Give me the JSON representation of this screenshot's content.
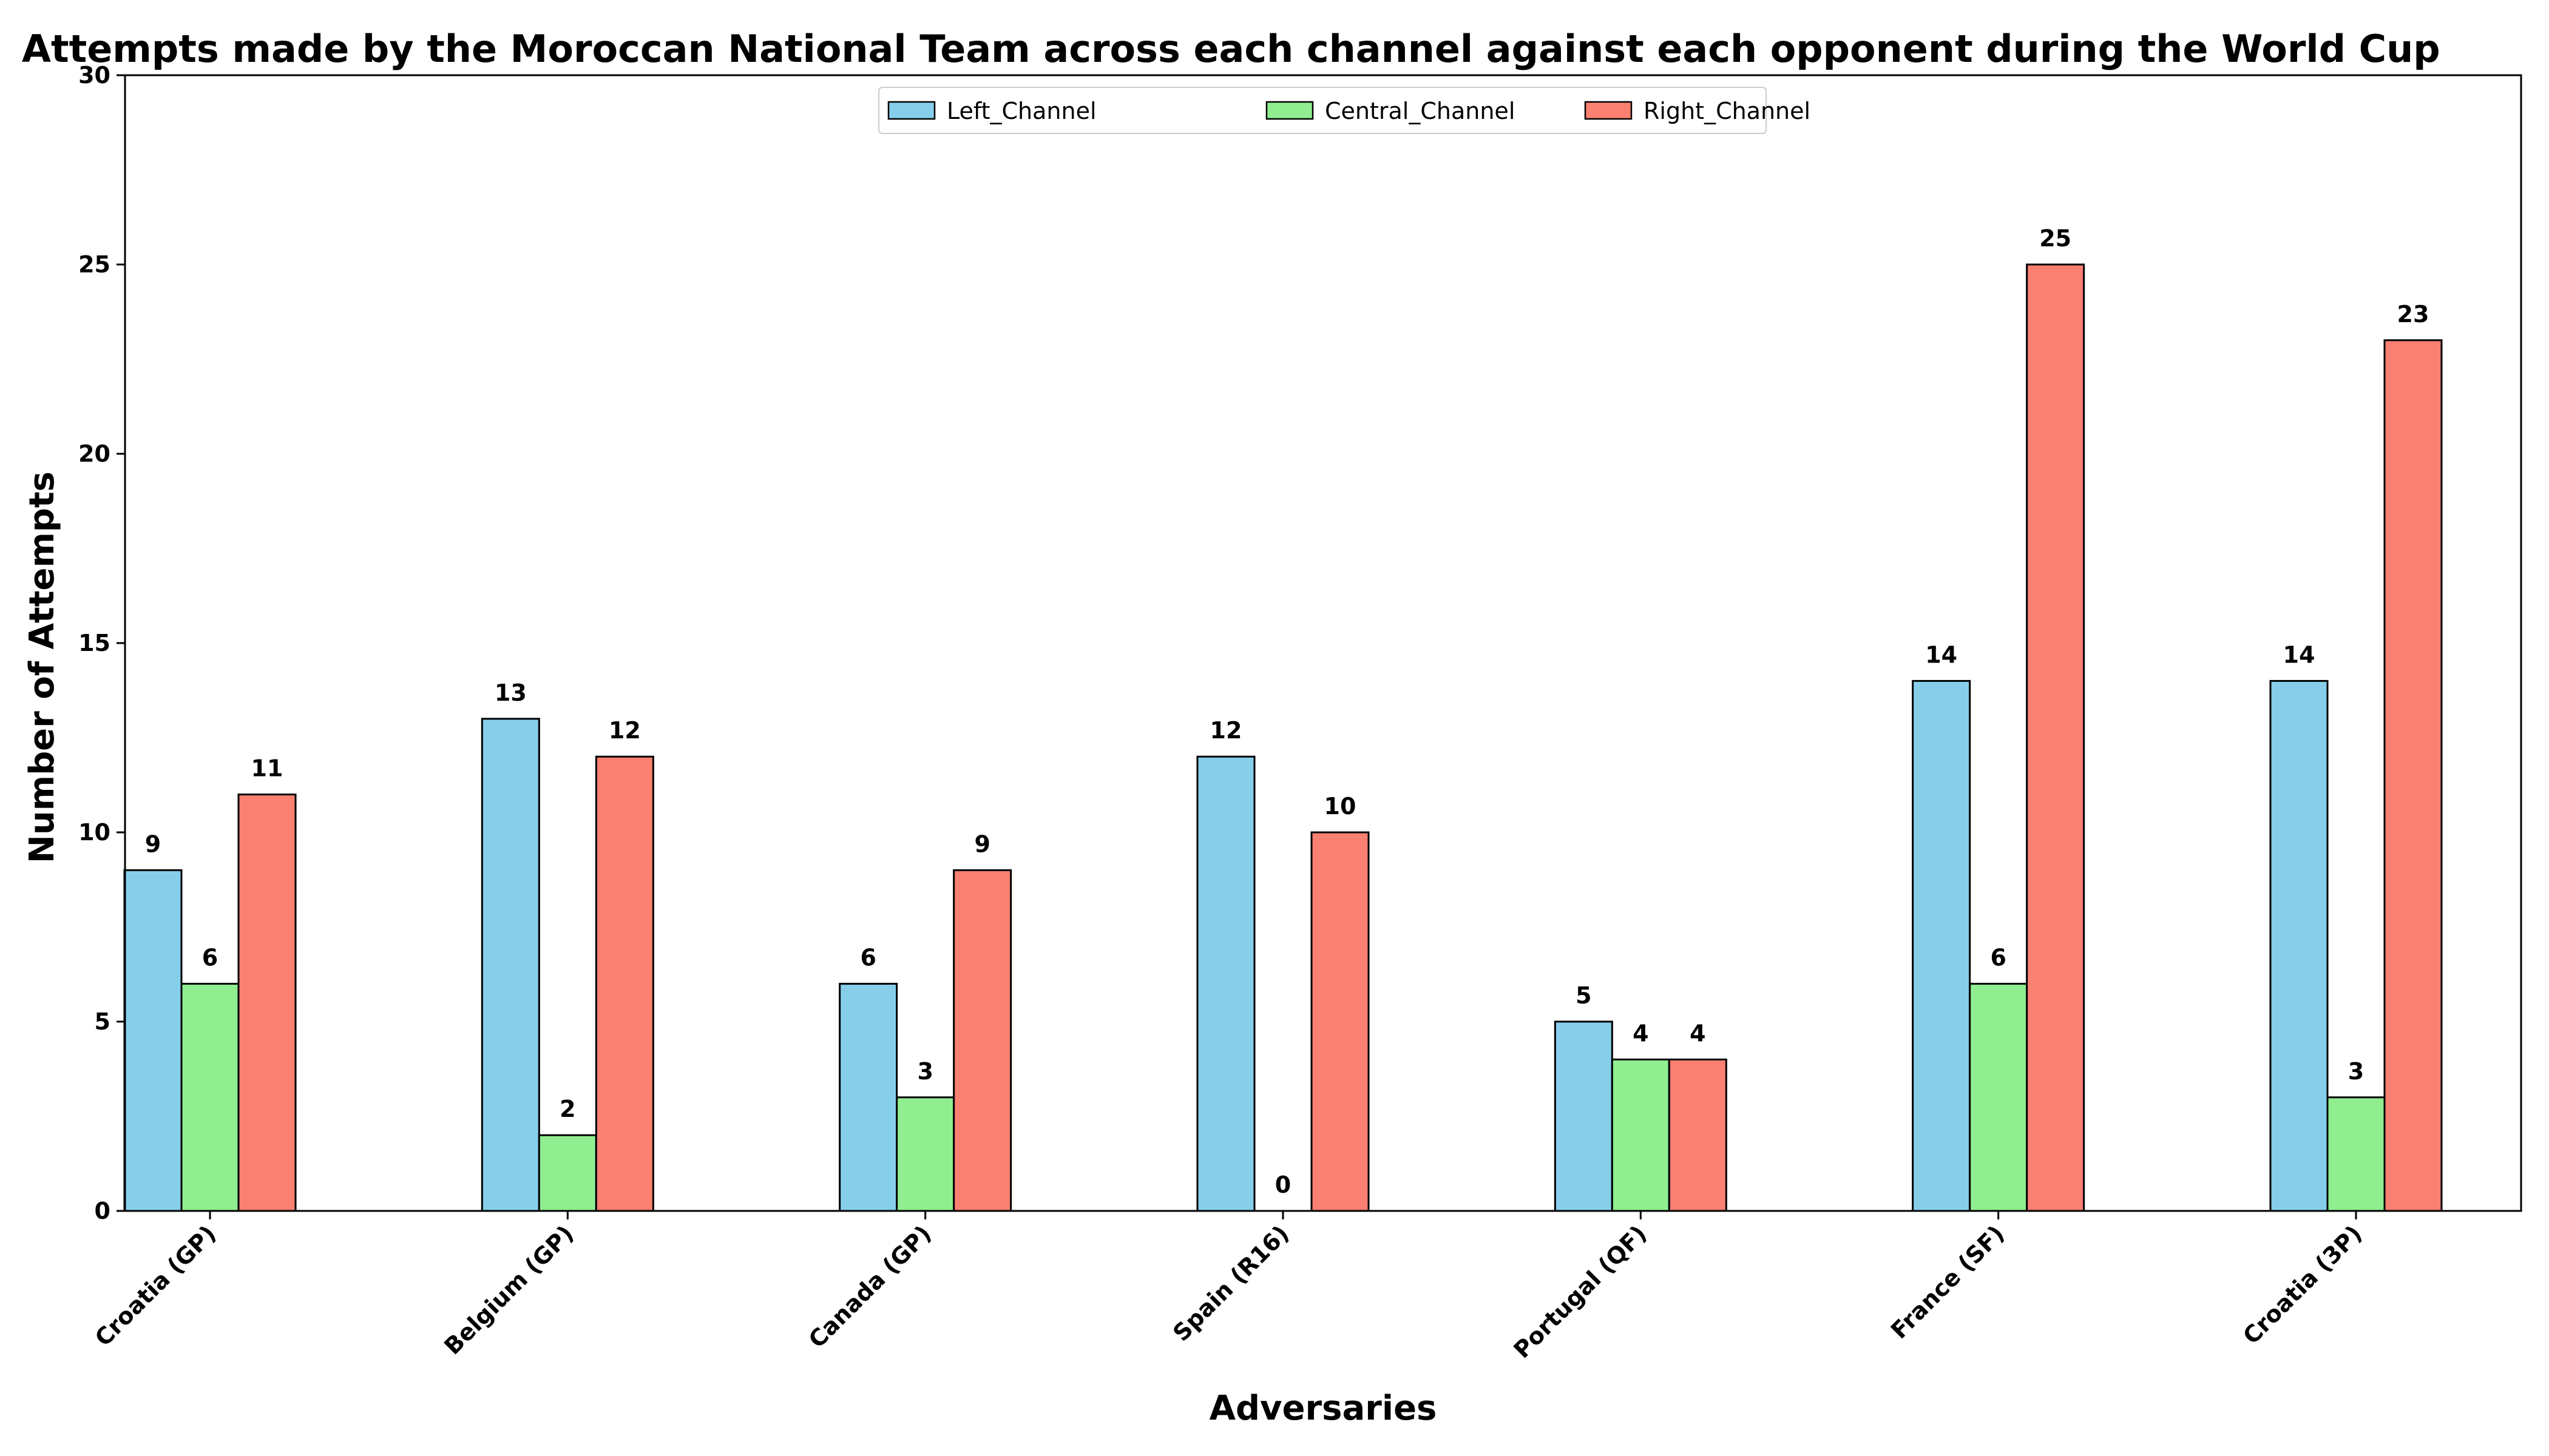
{
  "chart_data": {
    "type": "bar",
    "title": "Attempts made by the Moroccan National Team across each channel against each opponent during the World Cup",
    "xlabel": "Adversaries",
    "ylabel": "Number of Attempts",
    "ylim": [
      0,
      30
    ],
    "yticks": [
      0,
      5,
      10,
      15,
      20,
      25,
      30
    ],
    "categories": [
      "Croatia (GP)",
      "Belgium (GP)",
      "Canada (GP)",
      "Spain (R16)",
      "Portugal (QF)",
      "France (SF)",
      "Croatia (3P)"
    ],
    "series": [
      {
        "name": "Left_Channel",
        "color": "#87ceeb",
        "values": [
          9,
          13,
          6,
          12,
          5,
          14,
          14
        ]
      },
      {
        "name": "Central_Channel",
        "color": "#90ee90",
        "values": [
          6,
          2,
          3,
          0,
          4,
          6,
          3
        ]
      },
      {
        "name": "Right_Channel",
        "color": "#fa8072",
        "values": [
          11,
          12,
          9,
          10,
          4,
          25,
          23
        ]
      }
    ],
    "legend_position": "top-center",
    "grid": false
  }
}
